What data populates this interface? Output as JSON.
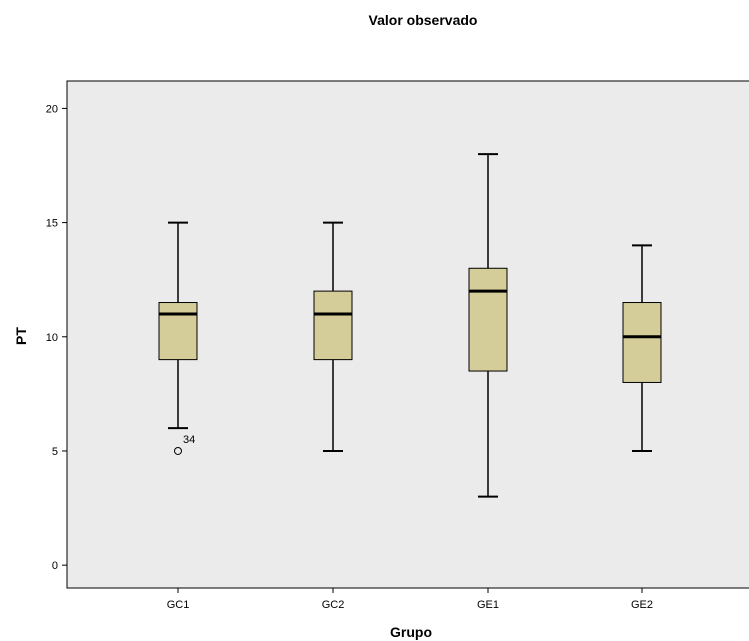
{
  "chart_data": {
    "type": "box",
    "title": "Valor observado",
    "xlabel": "Grupo",
    "ylabel": "PT",
    "ylim": [
      -1,
      21.2
    ],
    "yticks": [
      0,
      5,
      10,
      15,
      20
    ],
    "grid": false,
    "plot_background": "#ebebeb",
    "box_color": "#d5cd99",
    "categories": [
      "GC1",
      "GC2",
      "GE1",
      "GE2"
    ],
    "boxes": [
      {
        "category": "GC1",
        "whisker_low": 6,
        "q1": 9,
        "median": 11,
        "q3": 11.5,
        "whisker_high": 15,
        "outliers": [
          {
            "value": 5,
            "label": "34"
          }
        ]
      },
      {
        "category": "GC2",
        "whisker_low": 5,
        "q1": 9,
        "median": 11,
        "q3": 12,
        "whisker_high": 15,
        "outliers": []
      },
      {
        "category": "GE1",
        "whisker_low": 3,
        "q1": 8.5,
        "median": 12,
        "q3": 13,
        "whisker_high": 18,
        "outliers": []
      },
      {
        "category": "GE2",
        "whisker_low": 5,
        "q1": 8,
        "median": 10,
        "q3": 11.5,
        "whisker_high": 14,
        "outliers": []
      }
    ]
  }
}
